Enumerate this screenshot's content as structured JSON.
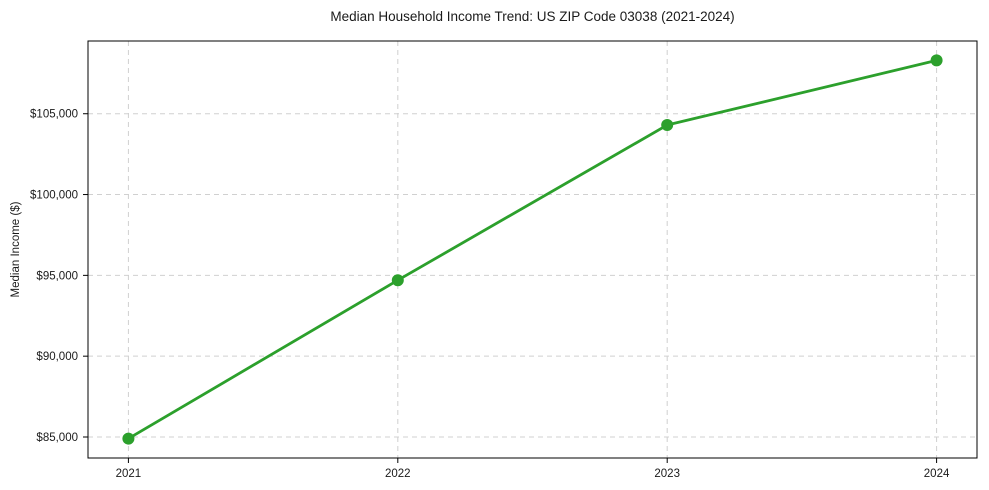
{
  "chart_data": {
    "type": "line",
    "title": "Median Household Income Trend: US ZIP Code 03038 (2021-2024)",
    "xlabel": "",
    "ylabel": "Median Income ($)",
    "x": [
      2021,
      2022,
      2023,
      2024
    ],
    "series": [
      {
        "name": "Median Household Income",
        "values": [
          84900,
          94700,
          104300,
          108300
        ]
      }
    ],
    "x_tick_labels": [
      "2021",
      "2022",
      "2023",
      "2024"
    ],
    "y_ticks": [
      85000,
      90000,
      95000,
      100000,
      105000
    ],
    "y_tick_labels": [
      "$85,000",
      "$90,000",
      "$95,000",
      "$100,000",
      "$105,000"
    ],
    "xlim": [
      2020.85,
      2024.15
    ],
    "ylim": [
      83700,
      109500
    ],
    "grid": true,
    "grid_style": "dashed",
    "legend_position": "none",
    "line_color": "#2ca02c",
    "marker_color": "#2ca02c",
    "grid_color": "#d0d0d0",
    "spine_color": "#000000",
    "background": "#ffffff"
  }
}
